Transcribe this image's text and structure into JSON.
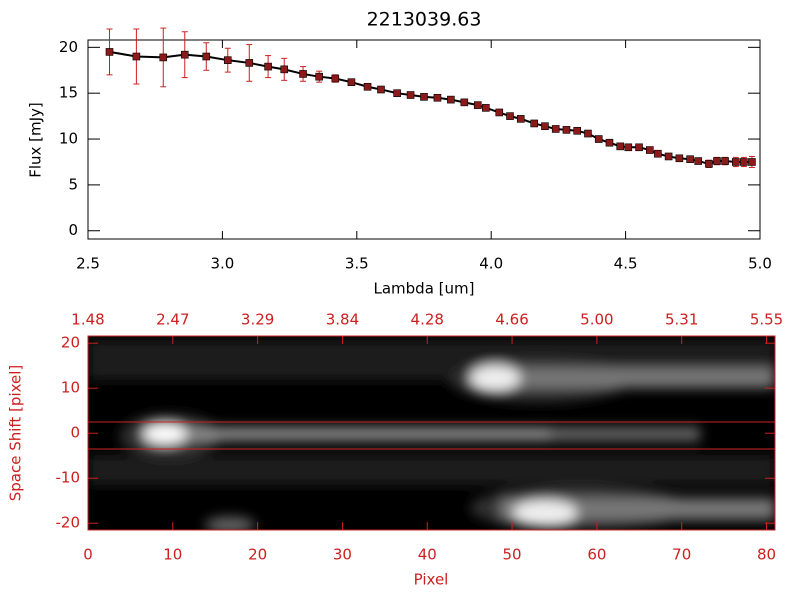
{
  "chart_data": [
    {
      "type": "line",
      "title": "2213039.63",
      "xlabel": "Lambda [um]",
      "ylabel": "Flux [mJy]",
      "x": [
        2.58,
        2.68,
        2.78,
        2.86,
        2.94,
        3.02,
        3.1,
        3.17,
        3.23,
        3.3,
        3.36,
        3.42,
        3.48,
        3.54,
        3.59,
        3.65,
        3.7,
        3.75,
        3.8,
        3.85,
        3.9,
        3.95,
        3.98,
        4.03,
        4.07,
        4.11,
        4.16,
        4.2,
        4.24,
        4.28,
        4.32,
        4.36,
        4.4,
        4.44,
        4.48,
        4.51,
        4.55,
        4.59,
        4.62,
        4.66,
        4.7,
        4.74,
        4.77,
        4.81,
        4.84,
        4.87,
        4.91,
        4.94,
        4.97
      ],
      "values": [
        19.5,
        19.0,
        18.9,
        19.2,
        19.0,
        18.6,
        18.3,
        17.9,
        17.6,
        17.1,
        16.8,
        16.6,
        16.2,
        15.7,
        15.4,
        15.0,
        14.8,
        14.6,
        14.5,
        14.3,
        14.0,
        13.7,
        13.4,
        12.9,
        12.5,
        12.2,
        11.7,
        11.4,
        11.1,
        11.0,
        10.9,
        10.6,
        10.0,
        9.6,
        9.2,
        9.1,
        9.1,
        8.8,
        8.4,
        8.1,
        7.9,
        7.8,
        7.6,
        7.3,
        7.6,
        7.6,
        7.5,
        7.5,
        7.5
      ],
      "errors": [
        2.5,
        3.0,
        3.2,
        2.5,
        1.5,
        1.3,
        2.0,
        1.2,
        1.2,
        0.8,
        0.6,
        0.4,
        0.3,
        0.3,
        0.3,
        0.3,
        0.3,
        0.3,
        0.3,
        0.3,
        0.3,
        0.3,
        0.3,
        0.3,
        0.3,
        0.3,
        0.3,
        0.3,
        0.3,
        0.3,
        0.3,
        0.3,
        0.3,
        0.3,
        0.3,
        0.3,
        0.3,
        0.3,
        0.3,
        0.3,
        0.3,
        0.3,
        0.3,
        0.4,
        0.4,
        0.4,
        0.5,
        0.5,
        0.6
      ],
      "color": "#000000",
      "marker_color": "#8b1a1a",
      "error_color": "#cc2020",
      "xlim": [
        2.5,
        5.0
      ],
      "xticks": [
        2.5,
        {
          "value": 3,
          "label": "3.0"
        },
        3.5,
        {
          "value": 4,
          "label": "4.0"
        },
        4.5,
        {
          "value": 5,
          "label": "5.0"
        }
      ],
      "ylim": [
        -0.9,
        20.8
      ],
      "yticks": [
        0,
        5,
        10,
        15,
        20
      ]
    },
    {
      "type": "image",
      "xlabel": "Pixel",
      "ylabel": "Space Shift [pixel]",
      "axis_color": "#cc2020",
      "xlim": [
        0,
        81
      ],
      "xticks": [
        0,
        10,
        20,
        30,
        40,
        50,
        60,
        70,
        80
      ],
      "x2ticks": [
        {
          "value": 0,
          "label": "1.48"
        },
        {
          "value": 10,
          "label": "2.47"
        },
        {
          "value": 20,
          "label": "3.29"
        },
        {
          "value": 30,
          "label": "3.84"
        },
        {
          "value": 40,
          "label": "4.28"
        },
        {
          "value": 50,
          "label": "4.66"
        },
        {
          "value": 60,
          "label": "5.00"
        },
        {
          "value": 70,
          "label": "5.31"
        },
        {
          "value": 80,
          "label": "5.55"
        }
      ],
      "ylim": [
        -21.5,
        21.6
      ],
      "yticks": [
        -20,
        -10,
        0,
        10,
        20
      ],
      "hlines": [
        2.5,
        -3.5
      ]
    }
  ]
}
